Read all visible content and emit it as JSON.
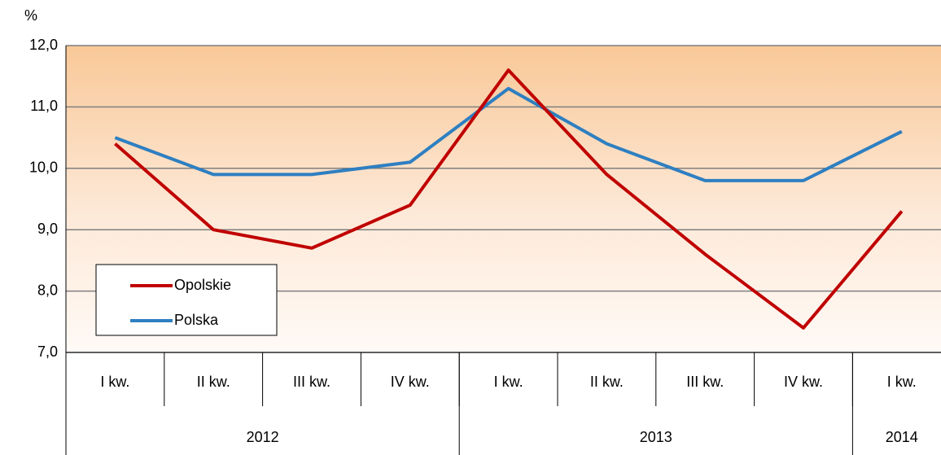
{
  "chart_data": {
    "type": "line",
    "y_unit": "%",
    "categories": [
      "I kw.",
      "II kw.",
      "III kw.",
      "IV kw.",
      "I kw.",
      "II kw.",
      "III kw.",
      "IV kw.",
      "I kw."
    ],
    "groups": [
      {
        "label": "2012",
        "span": 4
      },
      {
        "label": "2013",
        "span": 4
      },
      {
        "label": "2014",
        "span": 1
      }
    ],
    "series": [
      {
        "name": "Opolskie",
        "color": "#c00000",
        "values": [
          10.4,
          9.0,
          8.7,
          9.4,
          11.6,
          9.9,
          8.6,
          7.4,
          9.3
        ]
      },
      {
        "name": "Polska",
        "color": "#2e7fc1",
        "values": [
          10.5,
          9.9,
          9.9,
          10.1,
          11.3,
          10.4,
          9.8,
          9.8,
          10.6
        ]
      }
    ],
    "ylim": [
      7,
      12
    ],
    "yticks": [
      {
        "value": 7,
        "label": "7,0"
      },
      {
        "value": 8,
        "label": "8,0"
      },
      {
        "value": 9,
        "label": "9,0"
      },
      {
        "value": 10,
        "label": "10,0"
      },
      {
        "value": 11,
        "label": "11,0"
      },
      {
        "value": 12,
        "label": "12,0"
      }
    ],
    "grid": true,
    "legend": "lower-left"
  }
}
